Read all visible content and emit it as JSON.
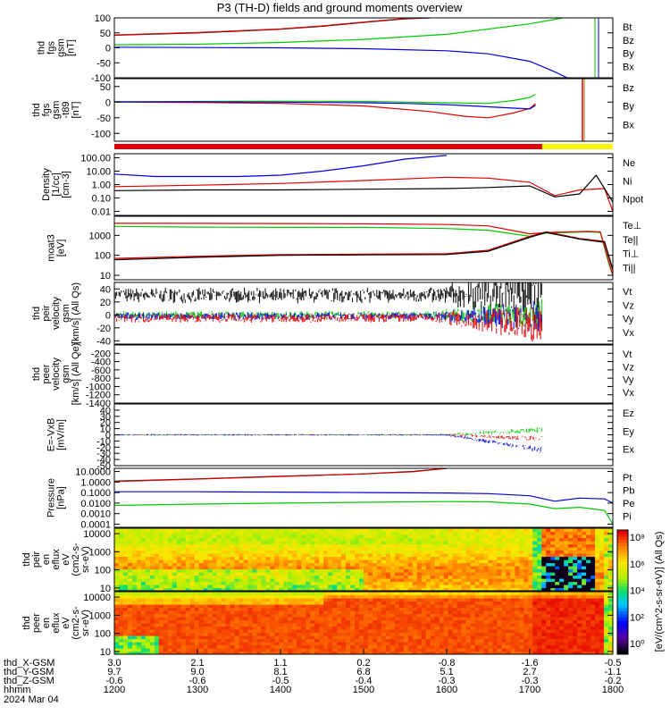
{
  "title": "P3 (TH-D) fields and ground moments overview",
  "colors": {
    "black": "#000000",
    "red": "#e00000",
    "green": "#00c800",
    "blue": "#0000e0",
    "yellow": "#f5f500"
  },
  "chart_data": {
    "type": "line",
    "time_axis": {
      "label": "hhmm",
      "date": "2024 Mar 04",
      "ticks": [
        "1200",
        "1300",
        "1400",
        "1500",
        "1600",
        "1700",
        "1800"
      ],
      "range": [
        "1200",
        "1800"
      ]
    },
    "gsm_rows": [
      {
        "label": "thd_X-GSM",
        "values": [
          "3.0",
          "2.1",
          "1.1",
          "0.2",
          "-0.8",
          "-1.6",
          "-0.5"
        ]
      },
      {
        "label": "thd_Y-GSM",
        "values": [
          "9.7",
          "9.0",
          "8.1",
          "6.8",
          "5.1",
          "2.7",
          "-1.1"
        ]
      },
      {
        "label": "thd_Z-GSM",
        "values": [
          "-0.6",
          "-0.6",
          "-0.5",
          "-0.4",
          "-0.3",
          "-0.3",
          "-0.2"
        ]
      }
    ],
    "panels": [
      {
        "id": "fgs",
        "ylabel": [
          "thd",
          "fgs",
          "gsm",
          "[nT]"
        ],
        "ylim": [
          -100,
          100
        ],
        "yticks": [
          "100",
          "50",
          "0",
          "-50",
          "-100"
        ],
        "legend": [
          {
            "name": "Bt",
            "color": "#000000"
          },
          {
            "name": "Bz",
            "color": "#e00000"
          },
          {
            "name": "By",
            "color": "#00c800"
          },
          {
            "name": "Bx",
            "color": "#0000e0"
          }
        ],
        "series": [
          {
            "name": "Bt",
            "x": [
              1200,
              1300,
              1400,
              1450,
              1500,
              1550,
              1580
            ],
            "y": [
              42,
              50,
              62,
              72,
              85,
              97,
              100
            ]
          },
          {
            "name": "Bz",
            "x": [
              1200,
              1300,
              1400,
              1450,
              1500,
              1550,
              1580
            ],
            "y": [
              43,
              51,
              63,
              73,
              86,
              98,
              100
            ]
          },
          {
            "name": "By",
            "x": [
              1200,
              1300,
              1400,
              1500,
              1600,
              1700,
              1740
            ],
            "y": [
              10,
              12,
              18,
              28,
              45,
              80,
              100
            ]
          },
          {
            "name": "Bx",
            "x": [
              1200,
              1300,
              1400,
              1500,
              1600,
              1650,
              1700,
              1730,
              1745
            ],
            "y": [
              2,
              1,
              0,
              -3,
              -10,
              -20,
              -45,
              -80,
              -100
            ]
          }
        ]
      },
      {
        "id": "fgs-detrend",
        "ylabel": [
          "thd",
          "fgs",
          "gsm",
          "-t89",
          "[nT]"
        ],
        "ylim": [
          -125,
          75
        ],
        "yticks": [
          "50",
          "0",
          "-50",
          "-100"
        ],
        "legend": [
          {
            "name": "Bz",
            "color": "#e00000"
          },
          {
            "name": "By",
            "color": "#00c800"
          },
          {
            "name": "Bx",
            "color": "#0000e0"
          }
        ],
        "series": [
          {
            "name": "Bz",
            "x": [
              1200,
              1300,
              1400,
              1500,
              1580,
              1620,
              1650,
              1680,
              1700,
              1707
            ],
            "y": [
              0,
              -1,
              -4,
              -12,
              -30,
              -45,
              -50,
              -35,
              -20,
              -5
            ]
          },
          {
            "name": "By",
            "x": [
              1200,
              1300,
              1400,
              1500,
              1600,
              1650,
              1680,
              1700,
              1707
            ],
            "y": [
              0,
              2,
              3,
              2,
              -2,
              -4,
              5,
              15,
              25
            ]
          },
          {
            "name": "Bx",
            "x": [
              1200,
              1300,
              1400,
              1500,
              1550,
              1600,
              1650,
              1700,
              1707
            ],
            "y": [
              1,
              1,
              0,
              -2,
              -4,
              -8,
              -15,
              -22,
              -10
            ]
          }
        ]
      },
      {
        "id": "density",
        "ylabel": [
          "Density",
          "[1/cc]",
          "[cm-3]"
        ],
        "log": true,
        "ylim": [
          0.005,
          200
        ],
        "yticks": [
          "100.00",
          "10.00",
          "1.00",
          "0.10",
          "0.01"
        ],
        "legend": [
          {
            "name": "Ne",
            "color": "#e00000"
          },
          {
            "name": "Ni",
            "color": "#000000"
          },
          {
            "name": "Npot",
            "color": "#0000e0"
          }
        ],
        "series": [
          {
            "name": "Ne",
            "x": [
              1200,
              1300,
              1400,
              1500,
              1600,
              1650,
              1700,
              1730,
              1760,
              1790,
              1800
            ],
            "y": [
              0.7,
              0.9,
              1.2,
              2.0,
              3.5,
              3.0,
              1.5,
              0.15,
              0.4,
              0.5,
              0.01
            ]
          },
          {
            "name": "Ni",
            "x": [
              1200,
              1300,
              1400,
              1500,
              1600,
              1650,
              1700,
              1730,
              1760,
              1780,
              1800
            ],
            "y": [
              0.35,
              0.4,
              0.4,
              0.45,
              0.5,
              0.6,
              0.8,
              0.12,
              0.2,
              5,
              0.05
            ]
          },
          {
            "name": "Npot",
            "x": [
              1200,
              1250,
              1300,
              1350,
              1400,
              1450,
              1500,
              1550,
              1600
            ],
            "y": [
              6,
              4,
              4,
              4,
              5,
              10,
              25,
              80,
              150
            ]
          }
        ]
      },
      {
        "id": "temp",
        "ylabel": [
          "moat3",
          "[eV]"
        ],
        "log": true,
        "ylim": [
          6,
          9000
        ],
        "yticks": [
          "1000",
          "100",
          "10"
        ],
        "legend": [
          {
            "name": "Te⊥",
            "color": "#e00000"
          },
          {
            "name": "Te||",
            "color": "#000000"
          },
          {
            "name": "Ti⊥",
            "color": "#e00000"
          },
          {
            "name": "Ti||",
            "color": "#00c800"
          }
        ],
        "series": [
          {
            "name": "Ti||",
            "x": [
              1200,
              1300,
              1400,
              1500,
              1600,
              1650,
              1700,
              1720,
              1770,
              1785,
              1795,
              1800
            ],
            "y": [
              2800,
              2600,
              2500,
              2500,
              2200,
              1800,
              900,
              1300,
              1500,
              1400,
              40,
              10
            ]
          },
          {
            "name": "Ti⊥",
            "x": [
              1200,
              1300,
              1400,
              1500,
              1600,
              1650,
              1700,
              1720,
              1770,
              1785,
              1795,
              1800
            ],
            "y": [
              4000,
              4000,
              3900,
              3800,
              3500,
              3000,
              1200,
              1400,
              1600,
              1500,
              50,
              10
            ]
          },
          {
            "name": "Te⊥",
            "x": [
              1200,
              1300,
              1400,
              1500,
              1600,
              1650,
              1700,
              1720,
              1760,
              1790,
              1800
            ],
            "y": [
              70,
              90,
              110,
              115,
              120,
              180,
              900,
              1500,
              700,
              500,
              20
            ]
          },
          {
            "name": "Te||",
            "x": [
              1200,
              1300,
              1400,
              1500,
              1600,
              1650,
              1700,
              1720,
              1760,
              1790,
              1800
            ],
            "y": [
              60,
              80,
              100,
              105,
              110,
              160,
              800,
              1400,
              650,
              450,
              18
            ]
          }
        ]
      },
      {
        "id": "vel-i",
        "ylabel": [
          "thd",
          "peir",
          "velocity",
          "gsm",
          "[km/s] (All Qs)"
        ],
        "ylim": [
          -45,
          50
        ],
        "yticks": [
          "40",
          "20",
          "0",
          "-20",
          "-40"
        ],
        "legend": [
          {
            "name": "Vt",
            "color": "#000000"
          },
          {
            "name": "Vz",
            "color": "#e00000"
          },
          {
            "name": "Vy",
            "color": "#00c800"
          },
          {
            "name": "Vx",
            "color": "#0000e0"
          }
        ]
      },
      {
        "id": "vel-e",
        "ylabel": [
          "thd",
          "peer",
          "velocity",
          "gsm",
          "[km/s] (All Qe)"
        ],
        "ylim": [
          -1400,
          0
        ],
        "yticks": [
          "-200",
          "-400",
          "-600",
          "-800",
          "-1000",
          "-1200",
          "-1400"
        ],
        "legend": [
          {
            "name": "Vt",
            "color": "#000000"
          },
          {
            "name": "Vz",
            "color": "#e00000"
          },
          {
            "name": "Vy",
            "color": "#00c800"
          },
          {
            "name": "Vx",
            "color": "#0000e0"
          }
        ]
      },
      {
        "id": "efield",
        "ylabel": [
          "E=-VxB",
          "[mV/m]"
        ],
        "ylim": [
          -50,
          50
        ],
        "yticks": [
          "40",
          "30",
          "20",
          "10",
          "0",
          "-10",
          "-20",
          "-30",
          "-40",
          "-50"
        ],
        "legend": [
          {
            "name": "Ez",
            "color": "#e00000"
          },
          {
            "name": "Ey",
            "color": "#00c800"
          },
          {
            "name": "Ex",
            "color": "#0000e0"
          }
        ]
      },
      {
        "id": "pressure",
        "ylabel": [
          "Pressure",
          "[nPa]"
        ],
        "log": true,
        "ylim": [
          5e-05,
          20
        ],
        "yticks": [
          "10.0000",
          "1.0000",
          "0.1000",
          "0.0100",
          "0.0010",
          "0.0001"
        ],
        "legend": [
          {
            "name": "Pt",
            "color": "#000000"
          },
          {
            "name": "Pb",
            "color": "#e00000"
          },
          {
            "name": "Pe",
            "color": "#00c800"
          },
          {
            "name": "Pi",
            "color": "#0000e0"
          }
        ],
        "series": [
          {
            "name": "Pt",
            "x": [
              1200,
              1300,
              1400,
              1500,
              1560,
              1600
            ],
            "y": [
              1.2,
              2.0,
              3.5,
              6,
              10,
              20
            ]
          },
          {
            "name": "Pb",
            "x": [
              1200,
              1300,
              1400,
              1500,
              1560,
              1600
            ],
            "y": [
              1.1,
              1.9,
              3.4,
              5.8,
              9.5,
              20
            ]
          },
          {
            "name": "Pi",
            "x": [
              1200,
              1300,
              1400,
              1500,
              1600,
              1650,
              1700,
              1730,
              1760,
              1790,
              1800
            ],
            "y": [
              0.12,
              0.12,
              0.11,
              0.1,
              0.09,
              0.08,
              0.05,
              0.015,
              0.03,
              0.025,
              0.01
            ]
          },
          {
            "name": "Pe",
            "x": [
              1200,
              1300,
              1400,
              1500,
              1600,
              1650,
              1700,
              1730,
              1760,
              1790,
              1800
            ],
            "y": [
              0.006,
              0.008,
              0.01,
              0.012,
              0.014,
              0.013,
              0.008,
              0.003,
              0.004,
              0.002,
              0.0001
            ]
          }
        ]
      },
      {
        "id": "peir-flux",
        "ylabel": [
          "thd",
          "peir",
          "en",
          "eflux",
          "eV",
          "(cm2-s-",
          "sr-eV)"
        ],
        "log": true,
        "ylim": [
          7,
          20000
        ],
        "yticks": [
          "10000",
          "1000",
          "100",
          "10"
        ],
        "type": "heatmap"
      },
      {
        "id": "peer-flux",
        "ylabel": [
          "thd",
          "peer",
          "en",
          "eflux",
          "eV",
          "(cm2-s-",
          "sr-eV)"
        ],
        "log": true,
        "ylim": [
          7,
          20000
        ],
        "yticks": [
          "10000",
          "1000",
          "100",
          "10"
        ],
        "type": "heatmap"
      }
    ],
    "colorbar": {
      "label": "[eV/(cm^2-s-sr-eV)]  (All Qs)",
      "ticks": [
        "10⁸",
        "10⁶",
        "10⁴",
        "10²",
        "10⁰"
      ]
    }
  }
}
